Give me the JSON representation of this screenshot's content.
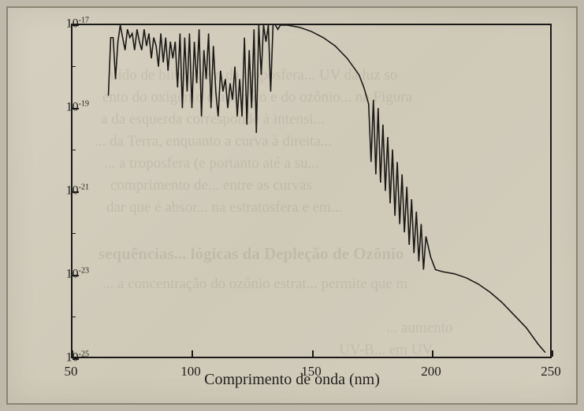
{
  "chart": {
    "type": "line",
    "xlabel": "Comprimento de onda (nm)",
    "x": {
      "min": 50,
      "max": 250,
      "ticks": [
        50,
        100,
        150,
        200,
        250
      ]
    },
    "y": {
      "scale": "log",
      "min_exp": -25,
      "max_exp": -17,
      "tick_exps": [
        -17,
        -19,
        -21,
        -23,
        -25
      ]
    },
    "colors": {
      "paper": "#d3cdbd",
      "border": "#1a1a18",
      "line": "#1a1916",
      "text": "#1f1f1c",
      "background": "#beb9ab"
    },
    "line_width": 1.6,
    "series_exp": [
      [
        65,
        -18.7
      ],
      [
        66,
        -17.3
      ],
      [
        67,
        -17.3
      ],
      [
        68,
        -18.3
      ],
      [
        69,
        -17.4
      ],
      [
        70,
        -17.0
      ],
      [
        71,
        -17.3
      ],
      [
        72,
        -17.6
      ],
      [
        73,
        -17.1
      ],
      [
        74,
        -17.3
      ],
      [
        75,
        -17.2
      ],
      [
        76,
        -17.6
      ],
      [
        77,
        -17.1
      ],
      [
        78,
        -17.4
      ],
      [
        79,
        -17.6
      ],
      [
        80,
        -17.1
      ],
      [
        81,
        -17.5
      ],
      [
        82,
        -17.2
      ],
      [
        83,
        -17.8
      ],
      [
        84,
        -17.3
      ],
      [
        85,
        -17.5
      ],
      [
        86,
        -18.0
      ],
      [
        87,
        -17.2
      ],
      [
        88,
        -17.9
      ],
      [
        89,
        -17.3
      ],
      [
        90,
        -18.1
      ],
      [
        91,
        -17.4
      ],
      [
        92,
        -17.8
      ],
      [
        93,
        -17.4
      ],
      [
        94,
        -18.5
      ],
      [
        95,
        -17.2
      ],
      [
        96,
        -19.0
      ],
      [
        97,
        -17.3
      ],
      [
        98,
        -18.6
      ],
      [
        99,
        -17.2
      ],
      [
        100,
        -19.0
      ],
      [
        101,
        -17.4
      ],
      [
        102,
        -18.4
      ],
      [
        103,
        -17.1
      ],
      [
        104,
        -19.2
      ],
      [
        105,
        -17.6
      ],
      [
        106,
        -18.3
      ],
      [
        107,
        -17.2
      ],
      [
        108,
        -19.0
      ],
      [
        109,
        -17.5
      ],
      [
        110,
        -18.6
      ],
      [
        111,
        -19.2
      ],
      [
        112,
        -18.1
      ],
      [
        113,
        -18.6
      ],
      [
        114,
        -18.3
      ],
      [
        115,
        -19.0
      ],
      [
        116,
        -18.4
      ],
      [
        117,
        -18.8
      ],
      [
        118,
        -18.0
      ],
      [
        119,
        -19.2
      ],
      [
        120,
        -18.3
      ],
      [
        121,
        -19.2
      ],
      [
        122,
        -17.3
      ],
      [
        123,
        -19.4
      ],
      [
        124,
        -17.6
      ],
      [
        125,
        -19.0
      ],
      [
        126,
        -17.1
      ],
      [
        127,
        -19.6
      ],
      [
        128,
        -17.0
      ],
      [
        129,
        -18.2
      ],
      [
        130,
        -17.0
      ],
      [
        131,
        -17.4
      ],
      [
        132,
        -17.0
      ],
      [
        133,
        -18.6
      ],
      [
        134,
        -16.95
      ],
      [
        135,
        -17.0
      ],
      [
        136,
        -17.1
      ],
      [
        137,
        -17.0
      ],
      [
        138,
        -17.0
      ],
      [
        140,
        -17.0
      ],
      [
        145,
        -17.05
      ],
      [
        150,
        -17.15
      ],
      [
        155,
        -17.3
      ],
      [
        160,
        -17.5
      ],
      [
        165,
        -17.8
      ],
      [
        170,
        -18.2
      ],
      [
        172,
        -18.5
      ],
      [
        174,
        -18.9
      ],
      [
        175,
        -20.3
      ],
      [
        176,
        -18.8
      ],
      [
        177,
        -20.6
      ],
      [
        178,
        -19.0
      ],
      [
        179,
        -20.8
      ],
      [
        180,
        -19.4
      ],
      [
        181,
        -21.0
      ],
      [
        182,
        -19.7
      ],
      [
        183,
        -21.3
      ],
      [
        184,
        -20.0
      ],
      [
        185,
        -21.6
      ],
      [
        186,
        -20.3
      ],
      [
        187,
        -21.8
      ],
      [
        188,
        -20.6
      ],
      [
        189,
        -22.0
      ],
      [
        190,
        -20.9
      ],
      [
        191,
        -22.3
      ],
      [
        192,
        -21.2
      ],
      [
        193,
        -22.5
      ],
      [
        194,
        -21.5
      ],
      [
        195,
        -22.7
      ],
      [
        196,
        -21.8
      ],
      [
        197,
        -22.9
      ],
      [
        198,
        -22.1
      ],
      [
        200,
        -22.6
      ],
      [
        202,
        -22.9
      ],
      [
        205,
        -22.95
      ],
      [
        210,
        -23.0
      ],
      [
        215,
        -23.1
      ],
      [
        220,
        -23.25
      ],
      [
        225,
        -23.45
      ],
      [
        230,
        -23.7
      ],
      [
        235,
        -24.0
      ],
      [
        240,
        -24.3
      ],
      [
        245,
        -24.7
      ],
      [
        248,
        -24.9
      ]
    ],
    "ghost_text": [
      "uído de blindagem da troposfera... UV da luz so",
      "ento do oxigênio diatômico e do ozônio... na Figura",
      "a da esquerda corresponde à intensi...",
      "... da Terra, enquanto a curva à direita...",
      "... a troposfera (e portanto até a su...",
      "comprimento de... entre as curvas",
      "dar que é absor... na estratosfera e em...",
      "sequências... lógicas da Depleção de Ozônio",
      "... a concentração do ozônio estrat... permite que m",
      "... aumento",
      "UV-B... em UV"
    ]
  }
}
